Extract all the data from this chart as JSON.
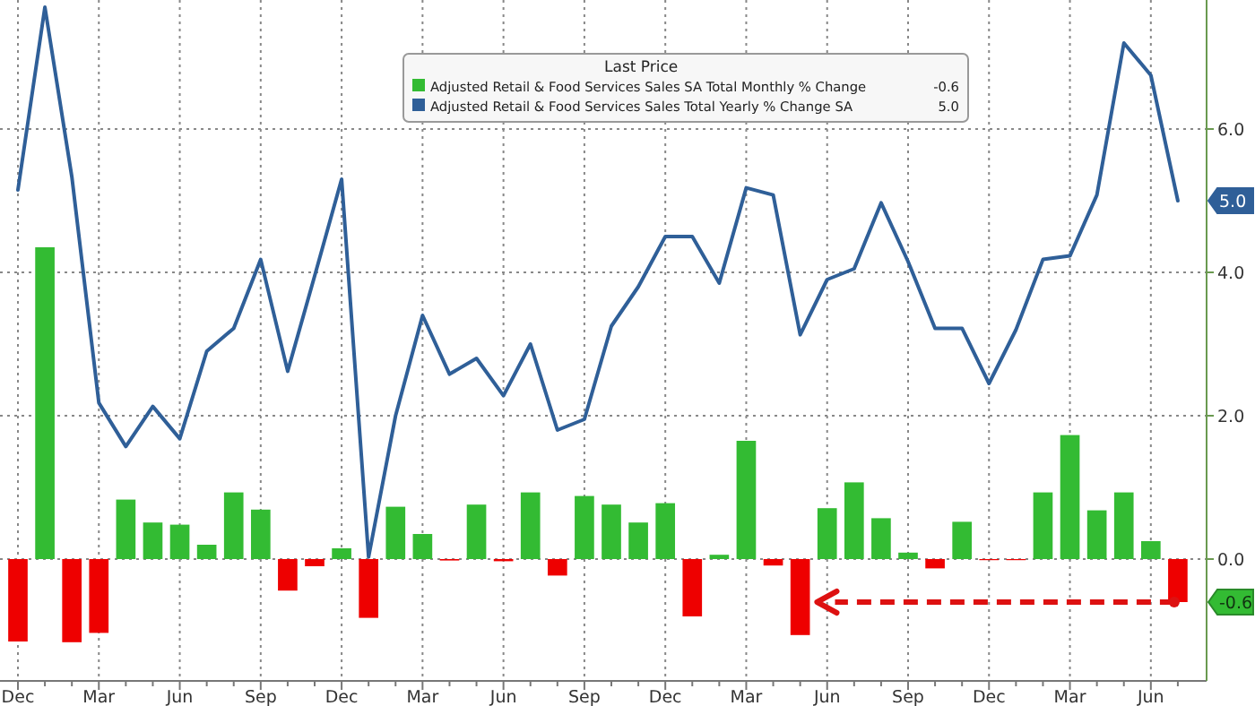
{
  "chart_data": {
    "type": "bar",
    "legend_title": "Last Price",
    "legend": "top",
    "grid": true,
    "categories": [
      "Dec",
      null,
      null,
      "Mar",
      null,
      null,
      "Jun",
      null,
      null,
      "Sep",
      null,
      null,
      "Dec",
      null,
      null,
      "Mar",
      null,
      null,
      "Jun",
      null,
      null,
      "Sep",
      null,
      null,
      "Dec",
      null,
      null,
      "Mar",
      null,
      null,
      "Jun",
      null,
      null,
      "Sep",
      null,
      null,
      "Dec",
      null,
      null,
      "Mar",
      null,
      null,
      "Jun",
      null
    ],
    "ylim": [
      -1.7,
      7.8
    ],
    "yticks": [
      {
        "value": 0,
        "label": "0.0"
      },
      {
        "value": 2,
        "label": "2.0"
      },
      {
        "value": 4,
        "label": "4.0"
      },
      {
        "value": 6,
        "label": "6.0"
      }
    ],
    "series": [
      {
        "name": "Adjusted Retail & Food Services Sales SA Total Monthly % Change",
        "color": "#33bb33",
        "values": [
          -1.15,
          4.35,
          -1.16,
          -1.03,
          0.83,
          0.51,
          0.48,
          0.2,
          0.93,
          0.69,
          -0.44,
          -0.1,
          0.15,
          -0.82,
          0.73,
          0.35,
          -0.02,
          0.76,
          -0.03,
          0.93,
          -0.23,
          0.88,
          0.76,
          0.51,
          0.78,
          -0.8,
          0.06,
          1.65,
          -0.09,
          -1.06,
          0.71,
          1.07,
          0.57,
          0.09,
          -0.13,
          0.52,
          -0.01,
          -0.01,
          0.93,
          1.73,
          0.68,
          0.93,
          0.25,
          -0.6
        ],
        "colors": [
          "#ee0000",
          "#33bb33",
          "#ee0000",
          "#ee0000",
          "#33bb33",
          "#33bb33",
          "#33bb33",
          "#33bb33",
          "#33bb33",
          "#33bb33",
          "#ee0000",
          "#ee0000",
          "#33bb33",
          "#ee0000",
          "#33bb33",
          "#33bb33",
          "#ee0000",
          "#33bb33",
          "#ee0000",
          "#33bb33",
          "#ee0000",
          "#33bb33",
          "#33bb33",
          "#33bb33",
          "#33bb33",
          "#ee0000",
          "#33bb33",
          "#33bb33",
          "#ee0000",
          "#ee0000",
          "#33bb33",
          "#33bb33",
          "#33bb33",
          "#33bb33",
          "#ee0000",
          "#33bb33",
          "#ee0000",
          "#ee0000",
          "#33bb33",
          "#33bb33",
          "#33bb33",
          "#33bb33",
          "#33bb33",
          "#ee0000"
        ]
      },
      {
        "type": "line",
        "name": "Adjusted Retail & Food Services Sales Total Yearly % Change SA",
        "color": "#2f5f98",
        "values": [
          5.15,
          7.7,
          5.33,
          2.18,
          1.57,
          2.13,
          1.68,
          2.9,
          3.22,
          4.18,
          2.62,
          3.95,
          5.3,
          0.03,
          2.0,
          3.4,
          2.58,
          2.8,
          2.28,
          3.0,
          1.8,
          1.95,
          3.25,
          3.8,
          4.5,
          4.5,
          3.85,
          5.18,
          5.08,
          3.13,
          3.9,
          4.05,
          4.97,
          4.15,
          3.22,
          3.22,
          2.45,
          3.2,
          4.18,
          4.23,
          5.08,
          7.2,
          6.75,
          5.0
        ]
      }
    ],
    "annotations": [
      "-0.6",
      "5.0"
    ]
  }
}
